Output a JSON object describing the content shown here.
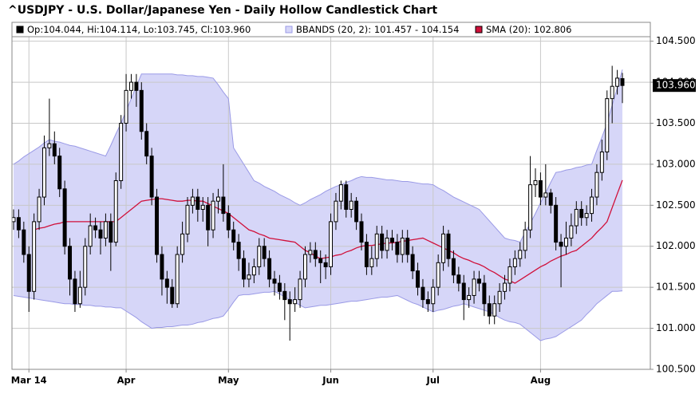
{
  "chart_data": {
    "type": "candlestick",
    "title": "^USDJPY - U.S. Dollar/Japanese Yen - Daily Hollow Candlestick Chart",
    "categories": [
      null,
      null,
      null,
      "Mar 14",
      null,
      null,
      null,
      null,
      null,
      null,
      null,
      null,
      null,
      null,
      null,
      null,
      null,
      null,
      null,
      null,
      null,
      null,
      "Apr",
      null,
      null,
      null,
      null,
      null,
      null,
      null,
      null,
      null,
      null,
      null,
      null,
      null,
      null,
      null,
      null,
      null,
      null,
      null,
      "May",
      null,
      null,
      null,
      null,
      null,
      null,
      null,
      null,
      null,
      null,
      null,
      null,
      null,
      null,
      null,
      null,
      null,
      null,
      null,
      "Jun",
      null,
      null,
      null,
      null,
      null,
      null,
      null,
      null,
      null,
      null,
      null,
      null,
      null,
      null,
      null,
      null,
      null,
      null,
      null,
      "Jul",
      null,
      null,
      null,
      null,
      null,
      null,
      null,
      null,
      null,
      null,
      null,
      null,
      null,
      null,
      null,
      null,
      null,
      null,
      null,
      null,
      "Aug",
      null,
      null,
      null,
      null,
      null,
      null,
      null,
      null,
      null,
      null,
      null,
      null,
      null,
      null,
      null,
      null
    ],
    "open": [
      102.3,
      102.35,
      102.2,
      101.9,
      101.45,
      102.3,
      102.6,
      103.2,
      103.25,
      103.1,
      102.7,
      102.0,
      101.6,
      101.3,
      101.5,
      102.0,
      102.25,
      102.2,
      102.1,
      102.3,
      102.05,
      102.8,
      103.5,
      103.9,
      104.0,
      103.9,
      103.4,
      103.1,
      102.6,
      101.9,
      101.6,
      101.5,
      101.3,
      101.9,
      102.15,
      102.5,
      102.6,
      102.45,
      102.5,
      102.2,
      102.55,
      102.6,
      102.4,
      102.2,
      102.05,
      101.85,
      101.6,
      101.65,
      101.75,
      102.0,
      101.85,
      101.6,
      101.55,
      101.45,
      101.35,
      101.3,
      101.35,
      101.6,
      101.9,
      101.95,
      101.85,
      101.8,
      101.75,
      102.3,
      102.55,
      102.75,
      102.45,
      102.55,
      102.3,
      102.05,
      101.75,
      101.85,
      102.15,
      101.95,
      102.1,
      102.05,
      101.9,
      102.1,
      101.9,
      101.7,
      101.5,
      101.35,
      101.3,
      101.5,
      101.8,
      102.15,
      101.85,
      101.65,
      101.55,
      101.35,
      101.4,
      101.6,
      101.55,
      101.3,
      101.15,
      101.3,
      101.45,
      101.55,
      101.75,
      101.85,
      101.95,
      102.2,
      102.75,
      102.8,
      102.6,
      102.65,
      102.5,
      102.05,
      102.0,
      102.1,
      102.25,
      102.45,
      102.35,
      102.4,
      102.6,
      102.9,
      103.15,
      103.8,
      103.95,
      104.044
    ],
    "high": [
      102.45,
      102.45,
      102.3,
      102.0,
      102.4,
      102.7,
      103.35,
      103.8,
      103.4,
      103.2,
      102.8,
      102.1,
      101.7,
      101.7,
      102.1,
      102.4,
      102.35,
      102.3,
      102.4,
      102.4,
      102.9,
      103.6,
      104.1,
      104.1,
      104.1,
      104.0,
      103.5,
      103.2,
      102.7,
      102.0,
      101.7,
      101.6,
      102.0,
      102.3,
      102.6,
      102.7,
      102.7,
      102.6,
      102.6,
      102.65,
      102.7,
      103.0,
      102.5,
      102.3,
      102.15,
      101.95,
      101.8,
      101.85,
      102.1,
      102.1,
      101.95,
      101.7,
      101.65,
      101.55,
      101.45,
      101.5,
      101.7,
      102.0,
      102.05,
      102.05,
      101.95,
      101.9,
      102.4,
      102.65,
      102.8,
      102.8,
      102.65,
      102.6,
      102.4,
      102.15,
      102.0,
      102.25,
      102.25,
      102.2,
      102.2,
      102.15,
      102.2,
      102.2,
      102.0,
      101.8,
      101.6,
      101.45,
      101.6,
      101.9,
      102.25,
      102.2,
      101.95,
      101.75,
      101.65,
      101.5,
      101.7,
      101.7,
      101.65,
      101.4,
      101.4,
      101.55,
      101.65,
      101.85,
      101.95,
      102.05,
      102.3,
      103.1,
      102.95,
      102.9,
      103.0,
      102.7,
      102.6,
      102.15,
      102.3,
      102.4,
      102.55,
      102.55,
      102.5,
      102.7,
      103.0,
      103.3,
      103.9,
      104.2,
      104.15,
      104.114
    ],
    "low": [
      102.2,
      102.1,
      101.8,
      101.2,
      101.35,
      102.2,
      102.5,
      103.1,
      103.0,
      102.6,
      101.9,
      101.4,
      101.2,
      101.25,
      101.4,
      101.9,
      102.1,
      101.9,
      102.0,
      101.7,
      102.0,
      102.7,
      103.4,
      103.8,
      103.7,
      103.3,
      103.0,
      102.5,
      101.8,
      101.4,
      101.3,
      101.25,
      101.25,
      101.8,
      102.05,
      102.4,
      102.3,
      102.3,
      102.0,
      102.1,
      102.4,
      102.3,
      102.1,
      101.95,
      101.7,
      101.5,
      101.5,
      101.55,
      101.65,
      101.75,
      101.5,
      101.4,
      101.35,
      101.1,
      100.85,
      101.2,
      101.25,
      101.5,
      101.8,
      101.75,
      101.55,
      101.6,
      101.65,
      102.2,
      102.45,
      102.35,
      102.35,
      102.2,
      101.95,
      101.65,
      101.65,
      101.75,
      101.85,
      101.85,
      101.95,
      101.8,
      101.8,
      101.8,
      101.6,
      101.4,
      101.25,
      101.2,
      101.2,
      101.4,
      101.7,
      101.75,
      101.55,
      101.45,
      101.1,
      101.25,
      101.3,
      101.45,
      101.15,
      101.05,
      101.05,
      101.2,
      101.35,
      101.45,
      101.65,
      101.75,
      101.85,
      102.1,
      102.6,
      102.5,
      102.5,
      102.4,
      101.95,
      101.5,
      101.9,
      102.0,
      102.15,
      102.25,
      102.25,
      102.3,
      102.5,
      102.8,
      103.05,
      103.5,
      103.85,
      103.745
    ],
    "close": [
      102.35,
      102.2,
      101.9,
      101.45,
      102.3,
      102.6,
      103.2,
      103.25,
      103.1,
      102.7,
      102.0,
      101.6,
      101.3,
      101.5,
      102.0,
      102.25,
      102.2,
      102.1,
      102.3,
      102.05,
      102.8,
      103.5,
      103.9,
      104.0,
      103.9,
      103.4,
      103.1,
      102.6,
      101.9,
      101.6,
      101.5,
      101.3,
      101.9,
      102.15,
      102.5,
      102.6,
      102.45,
      102.5,
      102.2,
      102.55,
      102.6,
      102.4,
      102.2,
      102.05,
      101.85,
      101.6,
      101.65,
      101.75,
      102.0,
      101.85,
      101.6,
      101.55,
      101.45,
      101.35,
      101.3,
      101.35,
      101.6,
      101.9,
      101.95,
      101.85,
      101.8,
      101.75,
      102.3,
      102.55,
      102.75,
      102.45,
      102.55,
      102.3,
      102.05,
      101.75,
      101.85,
      102.15,
      101.95,
      102.1,
      102.05,
      101.9,
      102.1,
      101.9,
      101.7,
      101.5,
      101.35,
      101.3,
      101.5,
      101.8,
      102.15,
      101.85,
      101.65,
      101.55,
      101.35,
      101.4,
      101.6,
      101.55,
      101.3,
      101.15,
      101.3,
      101.45,
      101.55,
      101.75,
      101.85,
      101.95,
      102.2,
      102.75,
      102.8,
      102.6,
      102.65,
      102.5,
      102.05,
      102.0,
      102.1,
      102.25,
      102.45,
      102.35,
      102.4,
      102.6,
      102.9,
      103.15,
      103.8,
      103.95,
      104.05,
      103.96
    ],
    "candle_color": "#000000",
    "series": [
      {
        "name": "BBANDS (20, 2): 101.457 - 104.154",
        "color": "#9a9ae6",
        "fill": "#d6d6f8",
        "upper": [
          103.0,
          103.04,
          103.09,
          103.13,
          103.17,
          103.21,
          103.26,
          103.3,
          103.28,
          103.27,
          103.25,
          103.23,
          103.22,
          103.2,
          103.18,
          103.16,
          103.14,
          103.12,
          103.1,
          103.23,
          103.37,
          103.5,
          103.65,
          103.8,
          103.95,
          104.1,
          104.1,
          104.1,
          104.1,
          104.1,
          104.1,
          104.1,
          104.09,
          104.09,
          104.08,
          104.08,
          104.07,
          104.07,
          104.06,
          104.05,
          103.97,
          103.88,
          103.8,
          103.2,
          103.1,
          103.0,
          102.9,
          102.8,
          102.77,
          102.73,
          102.7,
          102.67,
          102.63,
          102.6,
          102.57,
          102.53,
          102.5,
          102.53,
          102.57,
          102.6,
          102.63,
          102.67,
          102.7,
          102.73,
          102.75,
          102.78,
          102.8,
          102.83,
          102.85,
          102.84,
          102.84,
          102.83,
          102.82,
          102.81,
          102.81,
          102.8,
          102.79,
          102.79,
          102.78,
          102.77,
          102.76,
          102.76,
          102.75,
          102.71,
          102.68,
          102.64,
          102.6,
          102.57,
          102.54,
          102.51,
          102.48,
          102.45,
          102.38,
          102.31,
          102.24,
          102.17,
          102.1,
          102.08,
          102.07,
          102.05,
          102.17,
          102.28,
          102.4,
          102.53,
          102.65,
          102.78,
          102.9,
          102.91,
          102.93,
          102.94,
          102.96,
          102.97,
          102.99,
          103.0,
          103.17,
          103.33,
          103.5,
          103.72,
          103.93,
          104.154
        ],
        "lower": [
          101.4,
          101.39,
          101.38,
          101.37,
          101.36,
          101.35,
          101.34,
          101.33,
          101.32,
          101.31,
          101.3,
          101.3,
          101.29,
          101.29,
          101.28,
          101.28,
          101.27,
          101.27,
          101.26,
          101.26,
          101.25,
          101.25,
          101.21,
          101.17,
          101.13,
          101.08,
          101.04,
          101.0,
          101.01,
          101.01,
          101.02,
          101.02,
          101.03,
          101.04,
          101.04,
          101.05,
          101.07,
          101.08,
          101.1,
          101.12,
          101.13,
          101.15,
          101.23,
          101.32,
          101.4,
          101.41,
          101.41,
          101.42,
          101.43,
          101.44,
          101.44,
          101.45,
          101.42,
          101.38,
          101.35,
          101.32,
          101.28,
          101.25,
          101.26,
          101.27,
          101.28,
          101.28,
          101.29,
          101.3,
          101.31,
          101.32,
          101.33,
          101.33,
          101.34,
          101.35,
          101.36,
          101.37,
          101.38,
          101.38,
          101.39,
          101.4,
          101.37,
          101.34,
          101.31,
          101.29,
          101.26,
          101.23,
          101.2,
          101.22,
          101.23,
          101.25,
          101.27,
          101.28,
          101.3,
          101.28,
          101.26,
          101.24,
          101.22,
          101.2,
          101.17,
          101.13,
          101.1,
          101.08,
          101.07,
          101.05,
          101.0,
          100.95,
          100.9,
          100.85,
          100.87,
          100.88,
          100.9,
          100.94,
          100.98,
          101.02,
          101.06,
          101.1,
          101.17,
          101.23,
          101.3,
          101.35,
          101.4,
          101.45,
          101.45,
          101.457
        ]
      },
      {
        "name": "SMA (20): 102.806",
        "color": "#d0103a",
        "values": [
          null,
          null,
          null,
          null,
          102.2,
          102.22,
          102.23,
          102.25,
          102.27,
          102.28,
          102.3,
          102.3,
          102.3,
          102.3,
          102.3,
          102.3,
          102.3,
          102.3,
          102.3,
          102.3,
          102.3,
          102.35,
          102.4,
          102.45,
          102.5,
          102.55,
          102.56,
          102.57,
          102.58,
          102.58,
          102.57,
          102.56,
          102.55,
          102.55,
          102.56,
          102.56,
          102.55,
          102.55,
          102.52,
          102.49,
          102.46,
          102.43,
          102.4,
          102.35,
          102.3,
          102.25,
          102.2,
          102.18,
          102.15,
          102.13,
          102.1,
          102.09,
          102.08,
          102.07,
          102.06,
          102.05,
          102.0,
          101.95,
          101.92,
          101.88,
          101.85,
          101.86,
          101.87,
          101.89,
          101.9,
          101.93,
          101.95,
          101.98,
          102.0,
          102.01,
          102.01,
          102.02,
          102.03,
          102.04,
          102.04,
          102.05,
          102.06,
          102.07,
          102.08,
          102.09,
          102.1,
          102.07,
          102.04,
          102.01,
          101.98,
          101.95,
          101.92,
          101.88,
          101.85,
          101.83,
          101.8,
          101.78,
          101.75,
          101.71,
          101.68,
          101.64,
          101.6,
          101.58,
          101.55,
          101.59,
          101.63,
          101.67,
          101.71,
          101.75,
          101.78,
          101.82,
          101.85,
          101.88,
          101.9,
          101.93,
          101.95,
          102.0,
          102.05,
          102.1,
          102.17,
          102.23,
          102.3,
          102.47,
          102.64,
          102.806
        ]
      }
    ],
    "ohlc_legend": "Op:104.044, Hi:104.114, Lo:103.745, Cl:103.960",
    "last_price": {
      "value": 103.96,
      "label": "103.960"
    },
    "ylim": [
      100.5,
      104.73
    ],
    "yticks": [
      {
        "value": 100.5,
        "label": "100.500"
      },
      {
        "value": 101,
        "label": "101.000"
      },
      {
        "value": 101.5,
        "label": "101.500"
      },
      {
        "value": 102,
        "label": "102.000"
      },
      {
        "value": 102.5,
        "label": "102.500"
      },
      {
        "value": 103,
        "label": "103.000"
      },
      {
        "value": 103.5,
        "label": "103.500"
      },
      {
        "value": 104,
        "label": "104.000"
      },
      {
        "value": 104.5,
        "label": "104.500"
      }
    ],
    "grid": true
  }
}
